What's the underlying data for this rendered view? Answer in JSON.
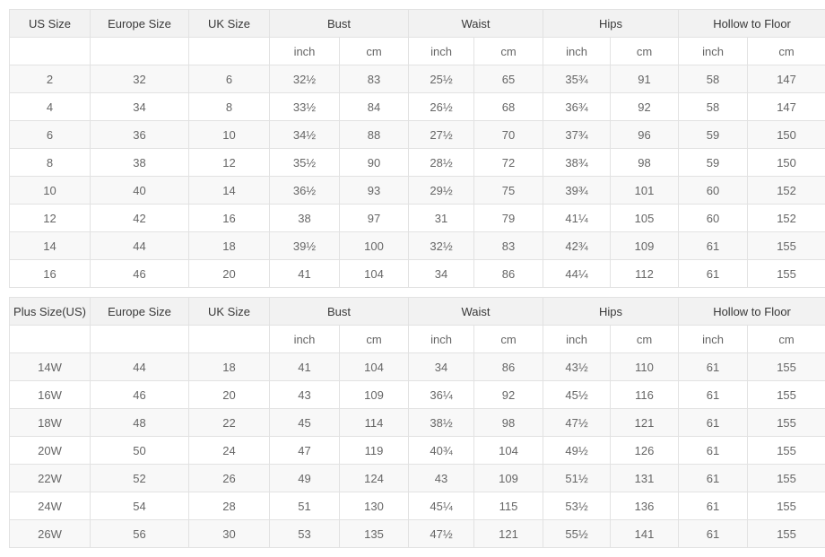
{
  "units": {
    "inch": "inch",
    "cm": "cm"
  },
  "tables": [
    {
      "size_headers": [
        "US Size",
        "Europe Size",
        "UK Size"
      ],
      "measure_headers": [
        "Bust",
        "Waist",
        "Hips",
        "Hollow to Floor"
      ],
      "rows": [
        [
          "2",
          "32",
          "6",
          "32½",
          "83",
          "25½",
          "65",
          "35¾",
          "91",
          "58",
          "147"
        ],
        [
          "4",
          "34",
          "8",
          "33½",
          "84",
          "26½",
          "68",
          "36¾",
          "92",
          "58",
          "147"
        ],
        [
          "6",
          "36",
          "10",
          "34½",
          "88",
          "27½",
          "70",
          "37¾",
          "96",
          "59",
          "150"
        ],
        [
          "8",
          "38",
          "12",
          "35½",
          "90",
          "28½",
          "72",
          "38¾",
          "98",
          "59",
          "150"
        ],
        [
          "10",
          "40",
          "14",
          "36½",
          "93",
          "29½",
          "75",
          "39¾",
          "101",
          "60",
          "152"
        ],
        [
          "12",
          "42",
          "16",
          "38",
          "97",
          "31",
          "79",
          "41¼",
          "105",
          "60",
          "152"
        ],
        [
          "14",
          "44",
          "18",
          "39½",
          "100",
          "32½",
          "83",
          "42¾",
          "109",
          "61",
          "155"
        ],
        [
          "16",
          "46",
          "20",
          "41",
          "104",
          "34",
          "86",
          "44¼",
          "112",
          "61",
          "155"
        ]
      ]
    },
    {
      "size_headers": [
        "Plus Size(US)",
        "Europe Size",
        "UK Size"
      ],
      "measure_headers": [
        "Bust",
        "Waist",
        "Hips",
        "Hollow to Floor"
      ],
      "rows": [
        [
          "14W",
          "44",
          "18",
          "41",
          "104",
          "34",
          "86",
          "43½",
          "110",
          "61",
          "155"
        ],
        [
          "16W",
          "46",
          "20",
          "43",
          "109",
          "36¼",
          "92",
          "45½",
          "116",
          "61",
          "155"
        ],
        [
          "18W",
          "48",
          "22",
          "45",
          "114",
          "38½",
          "98",
          "47½",
          "121",
          "61",
          "155"
        ],
        [
          "20W",
          "50",
          "24",
          "47",
          "119",
          "40¾",
          "104",
          "49½",
          "126",
          "61",
          "155"
        ],
        [
          "22W",
          "52",
          "26",
          "49",
          "124",
          "43",
          "109",
          "51½",
          "131",
          "61",
          "155"
        ],
        [
          "24W",
          "54",
          "28",
          "51",
          "130",
          "45¼",
          "115",
          "53½",
          "136",
          "61",
          "155"
        ],
        [
          "26W",
          "56",
          "30",
          "53",
          "135",
          "47½",
          "121",
          "55½",
          "141",
          "61",
          "155"
        ]
      ]
    }
  ],
  "colors": {
    "header_bg": "#f2f2f2",
    "stripe_bg": "#f8f8f8",
    "border": "#e2e2e2",
    "text": "#666666",
    "header_text": "#383838"
  }
}
